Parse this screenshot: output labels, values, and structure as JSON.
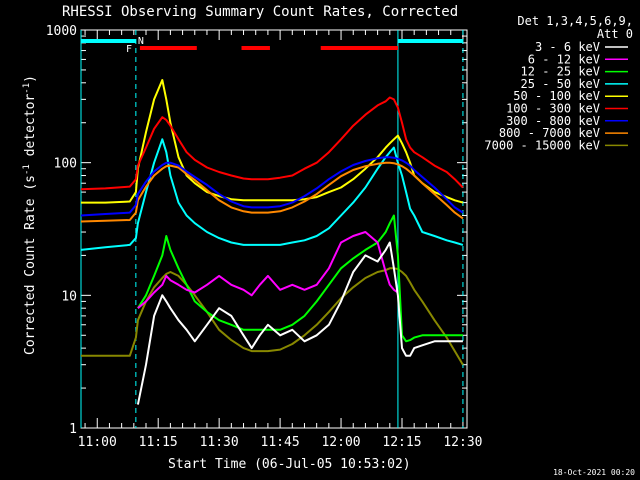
{
  "chart_data": {
    "type": "line",
    "title": "RHESSI Observing Summary Count Rates, Corrected",
    "xlabel": "Start Time (06-Jul-05 10:53:02)",
    "ylabel": "Corrected Count Rate (s",
    "ylabel_sup1": "-1",
    "ylabel_mid": " detector",
    "ylabel_sup2": "-1",
    "ylabel_end": ")",
    "yscale": "log",
    "ylim": [
      1,
      1000
    ],
    "xlim_minutes": [
      -4.0,
      91.0
    ],
    "y_ticks": [
      {
        "value": 1,
        "label": "1"
      },
      {
        "value": 10,
        "label": "10"
      },
      {
        "value": 100,
        "label": "100"
      },
      {
        "value": 1000,
        "label": "1000"
      }
    ],
    "x_ticks": [
      {
        "minute": 0,
        "label": "11:00"
      },
      {
        "minute": 15,
        "label": "11:15"
      },
      {
        "minute": 30,
        "label": "11:30"
      },
      {
        "minute": 45,
        "label": "11:45"
      },
      {
        "minute": 60,
        "label": "12:00"
      },
      {
        "minute": 75,
        "label": "12:15"
      },
      {
        "minute": 90,
        "label": "12:30"
      }
    ],
    "legend": {
      "placement": "right",
      "header_line1": "Det 1,3,4,5,6,9,",
      "header_line2": "Att 0"
    },
    "footer_timestamp": "18-Oct-2021 00:20",
    "markers": [
      {
        "label": "N",
        "minute": 9.5,
        "color": "#00ffff"
      },
      {
        "label": "F",
        "minute": 8.3,
        "color": "#ff0000"
      }
    ],
    "night_bars_minutes": [
      [
        -4.0,
        9.5
      ],
      [
        74.0,
        90.0
      ]
    ],
    "flare_bars_minutes": [
      [
        10.5,
        24.5
      ],
      [
        35.5,
        42.5
      ],
      [
        55.0,
        74.0
      ]
    ],
    "cyan_vlines_minutes": [
      -4.0,
      9.5,
      74.0,
      90.0
    ],
    "x_minutes": [
      -4,
      2,
      8,
      9.5,
      10,
      12,
      14,
      16,
      17,
      18,
      20,
      22,
      24,
      27,
      30,
      33,
      36,
      38,
      40,
      42,
      45,
      48,
      51,
      54,
      57,
      60,
      63,
      66,
      69,
      71,
      72,
      73,
      74,
      75,
      76,
      77,
      78,
      80,
      83,
      86,
      88,
      90
    ],
    "series": [
      {
        "name": "3 - 6 keV",
        "color": "#ffffff",
        "values": [
          null,
          null,
          null,
          null,
          1.5,
          3.0,
          7.0,
          10.0,
          9.0,
          8.0,
          6.5,
          5.5,
          4.5,
          6.0,
          8.0,
          7.0,
          5.0,
          4.0,
          5.0,
          6.0,
          5.0,
          5.5,
          4.5,
          5.0,
          6.0,
          9.0,
          15.0,
          20.0,
          18.0,
          22.0,
          25.0,
          16.0,
          10.0,
          4.0,
          3.5,
          3.5,
          4.0,
          4.2,
          4.5,
          4.5,
          4.5,
          4.5
        ]
      },
      {
        "name": "6 - 12 keV",
        "color": "#ff00ff",
        "values": [
          null,
          null,
          null,
          null,
          8.0,
          9.0,
          10.5,
          12.0,
          14.0,
          13.0,
          12.0,
          11.0,
          10.5,
          12.0,
          14.0,
          12.0,
          11.0,
          10.0,
          12.0,
          14.0,
          11.0,
          12.0,
          11.0,
          12.0,
          16.0,
          25.0,
          28.0,
          30.0,
          25.0,
          15.0,
          12.0,
          11.0,
          10.5,
          null,
          null,
          null,
          null,
          null,
          null,
          null,
          null,
          null
        ]
      },
      {
        "name": "12 - 25 keV",
        "color": "#00ff00",
        "values": [
          null,
          null,
          null,
          null,
          8.0,
          10.0,
          14.0,
          20.0,
          28.0,
          22.0,
          16.0,
          12.0,
          9.0,
          7.5,
          6.5,
          6.0,
          5.5,
          5.5,
          5.5,
          5.5,
          5.5,
          6.0,
          7.0,
          9.0,
          12.0,
          16.0,
          19.0,
          22.0,
          25.0,
          30.0,
          35.0,
          40.0,
          20.0,
          5.0,
          4.5,
          4.6,
          4.8,
          5.0,
          5.0,
          5.0,
          5.0,
          5.0
        ]
      },
      {
        "name": "25 - 50 keV",
        "color": "#00ffff",
        "values": [
          22.0,
          23.0,
          24.0,
          27.0,
          35.0,
          60.0,
          100.0,
          150.0,
          120.0,
          80.0,
          50.0,
          40.0,
          35.0,
          30.0,
          27.0,
          25.0,
          24.0,
          24.0,
          24.0,
          24.0,
          24.0,
          25.0,
          26.0,
          28.0,
          32.0,
          40.0,
          50.0,
          65.0,
          90.0,
          110.0,
          120.0,
          130.0,
          100.0,
          80.0,
          60.0,
          45.0,
          40.0,
          30.0,
          28.0,
          26.0,
          25.0,
          24.0
        ]
      },
      {
        "name": "50 - 100 keV",
        "color": "#ffff00",
        "values": [
          50.0,
          50.0,
          51.0,
          60.0,
          90.0,
          170.0,
          300.0,
          420.0,
          300.0,
          200.0,
          110.0,
          80.0,
          70.0,
          60.0,
          56.0,
          53.0,
          52.0,
          52.0,
          52.0,
          52.0,
          52.0,
          52.0,
          53.0,
          55.0,
          60.0,
          65.0,
          75.0,
          90.0,
          110.0,
          130.0,
          140.0,
          150.0,
          160.0,
          140.0,
          120.0,
          100.0,
          80.0,
          70.0,
          60.0,
          55.0,
          52.0,
          50.0
        ]
      },
      {
        "name": "100 - 300 keV",
        "color": "#ff0000",
        "values": [
          63.0,
          64.0,
          66.0,
          75.0,
          95.0,
          130.0,
          180.0,
          220.0,
          210.0,
          190.0,
          150.0,
          120.0,
          105.0,
          92.0,
          85.0,
          80.0,
          76.0,
          75.0,
          75.0,
          75.0,
          77.0,
          80.0,
          90.0,
          100.0,
          120.0,
          150.0,
          190.0,
          230.0,
          270.0,
          290.0,
          310.0,
          300.0,
          260.0,
          200.0,
          150.0,
          130.0,
          120.0,
          110.0,
          95.0,
          85.0,
          75.0,
          65.0
        ]
      },
      {
        "name": "300 - 800 keV",
        "color": "#0000ff",
        "values": [
          40.0,
          41.0,
          42.0,
          48.0,
          58.0,
          72.0,
          86.0,
          96.0,
          100.0,
          100.0,
          95.0,
          86.0,
          78.0,
          68.0,
          58.0,
          51.0,
          47.0,
          46.0,
          46.0,
          46.0,
          47.0,
          50.0,
          56.0,
          64.0,
          75.0,
          86.0,
          96.0,
          103.0,
          108.0,
          110.0,
          110.0,
          109.0,
          107.0,
          104.0,
          100.0,
          95.0,
          88.0,
          78.0,
          65.0,
          53.0,
          46.0,
          42.0
        ]
      },
      {
        "name": "800 - 7000 keV",
        "color": "#ff8800",
        "values": [
          36.0,
          36.5,
          37.0,
          42.0,
          52.0,
          66.0,
          80.0,
          90.0,
          94.0,
          95.0,
          92.0,
          82.0,
          74.0,
          62.0,
          52.0,
          46.0,
          43.0,
          42.0,
          42.0,
          42.0,
          43.0,
          46.0,
          51.0,
          58.0,
          68.0,
          79.0,
          88.0,
          94.0,
          98.0,
          100.0,
          100.0,
          99.0,
          97.0,
          94.0,
          90.0,
          85.0,
          80.0,
          70.0,
          58.0,
          48.0,
          42.0,
          38.0
        ]
      },
      {
        "name": "7000 - 15000 keV",
        "color": "#888800",
        "values": [
          3.5,
          3.5,
          3.5,
          4.8,
          6.5,
          9.0,
          11.5,
          13.5,
          14.5,
          15.0,
          14.0,
          12.0,
          10.0,
          7.5,
          5.5,
          4.6,
          4.0,
          3.8,
          3.8,
          3.8,
          3.9,
          4.3,
          5.0,
          6.0,
          7.5,
          9.5,
          11.5,
          13.5,
          15.0,
          15.5,
          16.0,
          16.0,
          15.8,
          15.0,
          14.0,
          12.5,
          11.0,
          9.0,
          6.5,
          4.8,
          3.8,
          3.0
        ]
      }
    ]
  }
}
